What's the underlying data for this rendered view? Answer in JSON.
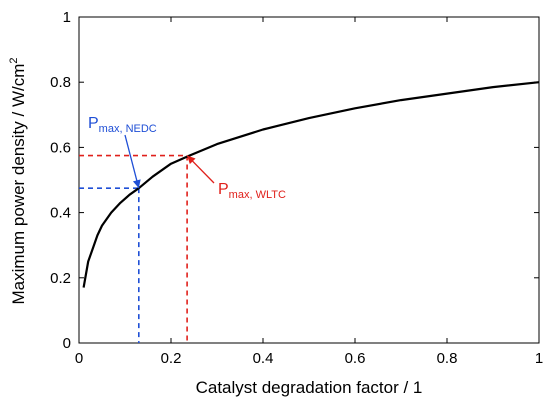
{
  "chart_data": {
    "type": "line",
    "xlabel": "Catalyst degradation factor  /  1",
    "ylabel_main": "Maximum power density  /  W/cm",
    "ylabel_sup": "2",
    "xlim": [
      0,
      1
    ],
    "ylim": [
      0,
      1
    ],
    "x_ticks": [
      "0",
      "0.2",
      "0.4",
      "0.6",
      "0.8",
      "1"
    ],
    "y_ticks": [
      "0",
      "0.2",
      "0.4",
      "0.6",
      "0.8",
      "1"
    ],
    "grid": false,
    "series": [
      {
        "color": "#000000",
        "x": [
          0.01,
          0.02,
          0.03,
          0.04,
          0.05,
          0.07,
          0.09,
          0.11,
          0.13,
          0.16,
          0.2,
          0.24,
          0.3,
          0.4,
          0.5,
          0.6,
          0.7,
          0.8,
          0.9,
          1.0
        ],
        "y": [
          0.17,
          0.25,
          0.29,
          0.33,
          0.36,
          0.4,
          0.43,
          0.455,
          0.475,
          0.51,
          0.55,
          0.575,
          0.61,
          0.655,
          0.69,
          0.72,
          0.745,
          0.765,
          0.785,
          0.8
        ]
      }
    ],
    "annotations": [
      {
        "label_main": "P",
        "label_sub": "max, NEDC",
        "color": "#1f4fd6",
        "x": 0.13,
        "y": 0.475
      },
      {
        "label_main": "P",
        "label_sub": "max, WLTC",
        "color": "#e0201b",
        "x": 0.235,
        "y": 0.575
      }
    ]
  }
}
